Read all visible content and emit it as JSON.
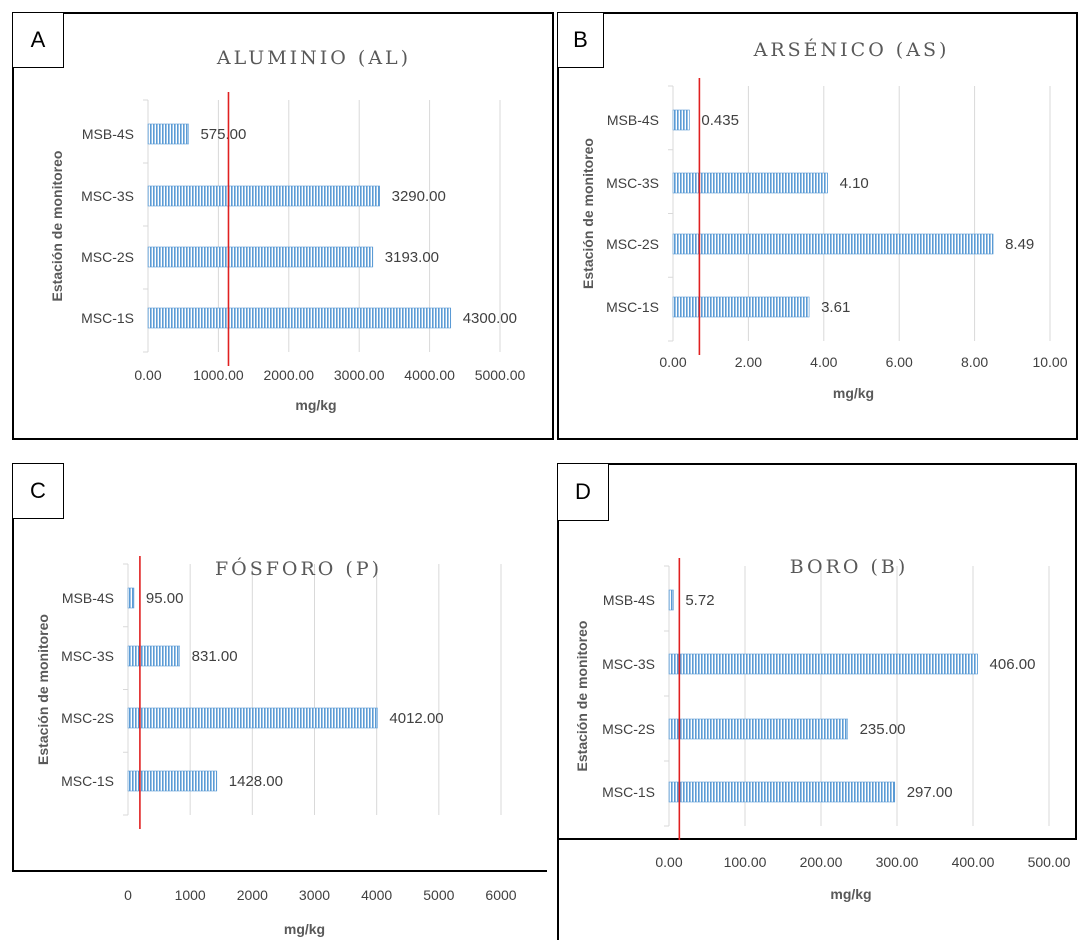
{
  "chart_data": [
    {
      "type": "bar",
      "orientation": "horizontal",
      "panel_label": "A",
      "title": "ALUMINIO (AL)",
      "xlabel": "mg/kg",
      "ylabel": "Estación de monitoreo",
      "categories": [
        "MSB-4S",
        "MSC-3S",
        "MSC-2S",
        "MSC-1S"
      ],
      "values": [
        575,
        3290,
        3193,
        4300
      ],
      "data_labels": [
        "575.00",
        "3290.00",
        "3193.00",
        "4300.00"
      ],
      "xlim": [
        0,
        5000
      ],
      "x_ticks": [
        0,
        1000,
        2000,
        3000,
        4000,
        5000
      ],
      "x_tick_labels": [
        "0.00",
        "1000.00",
        "2000.00",
        "3000.00",
        "4000.00",
        "5000.00"
      ],
      "reference_line": 575,
      "bar_color": "#5b9bd5",
      "reference_color": "#e02020",
      "grid": true
    },
    {
      "type": "bar",
      "orientation": "horizontal",
      "panel_label": "B",
      "title": "ARSÉNICO (AS)",
      "xlabel": "mg/kg",
      "ylabel": "Estación de monitoreo",
      "categories": [
        "MSB-4S",
        "MSC-3S",
        "MSC-2S",
        "MSC-1S"
      ],
      "values": [
        0.435,
        4.1,
        8.49,
        3.61
      ],
      "data_labels": [
        "0.435",
        "4.10",
        "8.49",
        "3.61"
      ],
      "xlim": [
        0,
        10
      ],
      "x_ticks": [
        0,
        2,
        4,
        6,
        8,
        10
      ],
      "x_tick_labels": [
        "0.00",
        "2.00",
        "4.00",
        "6.00",
        "8.00",
        "10.00"
      ],
      "reference_line": 0.435,
      "bar_color": "#5b9bd5",
      "reference_color": "#e02020",
      "grid": true
    },
    {
      "type": "bar",
      "orientation": "horizontal",
      "panel_label": "C",
      "title": "FÓSFORO (P)",
      "xlabel": "mg/kg",
      "ylabel": "Estación de monitoreo",
      "categories": [
        "MSB-4S",
        "MSC-3S",
        "MSC-2S",
        "MSC-1S"
      ],
      "values": [
        95,
        831,
        4012,
        1428
      ],
      "data_labels": [
        "95.00",
        "831.00",
        "4012.00",
        "1428.00"
      ],
      "xlim": [
        0,
        6000
      ],
      "x_ticks": [
        0,
        1000,
        2000,
        3000,
        4000,
        5000,
        6000
      ],
      "x_tick_labels": [
        "0",
        "1000",
        "2000",
        "3000",
        "4000",
        "5000",
        "6000"
      ],
      "reference_line": 95,
      "bar_color": "#5b9bd5",
      "reference_color": "#e02020",
      "grid": true
    },
    {
      "type": "bar",
      "orientation": "horizontal",
      "panel_label": "D",
      "title": "BORO (B)",
      "xlabel": "mg/kg",
      "ylabel": "Estación de monitoreo",
      "categories": [
        "MSB-4S",
        "MSC-3S",
        "MSC-2S",
        "MSC-1S"
      ],
      "values": [
        5.72,
        406,
        235,
        297
      ],
      "data_labels": [
        "5.72",
        "406.00",
        "235.00",
        "297.00"
      ],
      "xlim": [
        0,
        500
      ],
      "x_ticks": [
        0,
        100,
        200,
        300,
        400,
        500
      ],
      "x_tick_labels": [
        "0.00",
        "100.00",
        "200.00",
        "300.00",
        "400.00",
        "500.00"
      ],
      "reference_line": 5.72,
      "bar_color": "#5b9bd5",
      "reference_color": "#e02020",
      "grid": true
    }
  ]
}
